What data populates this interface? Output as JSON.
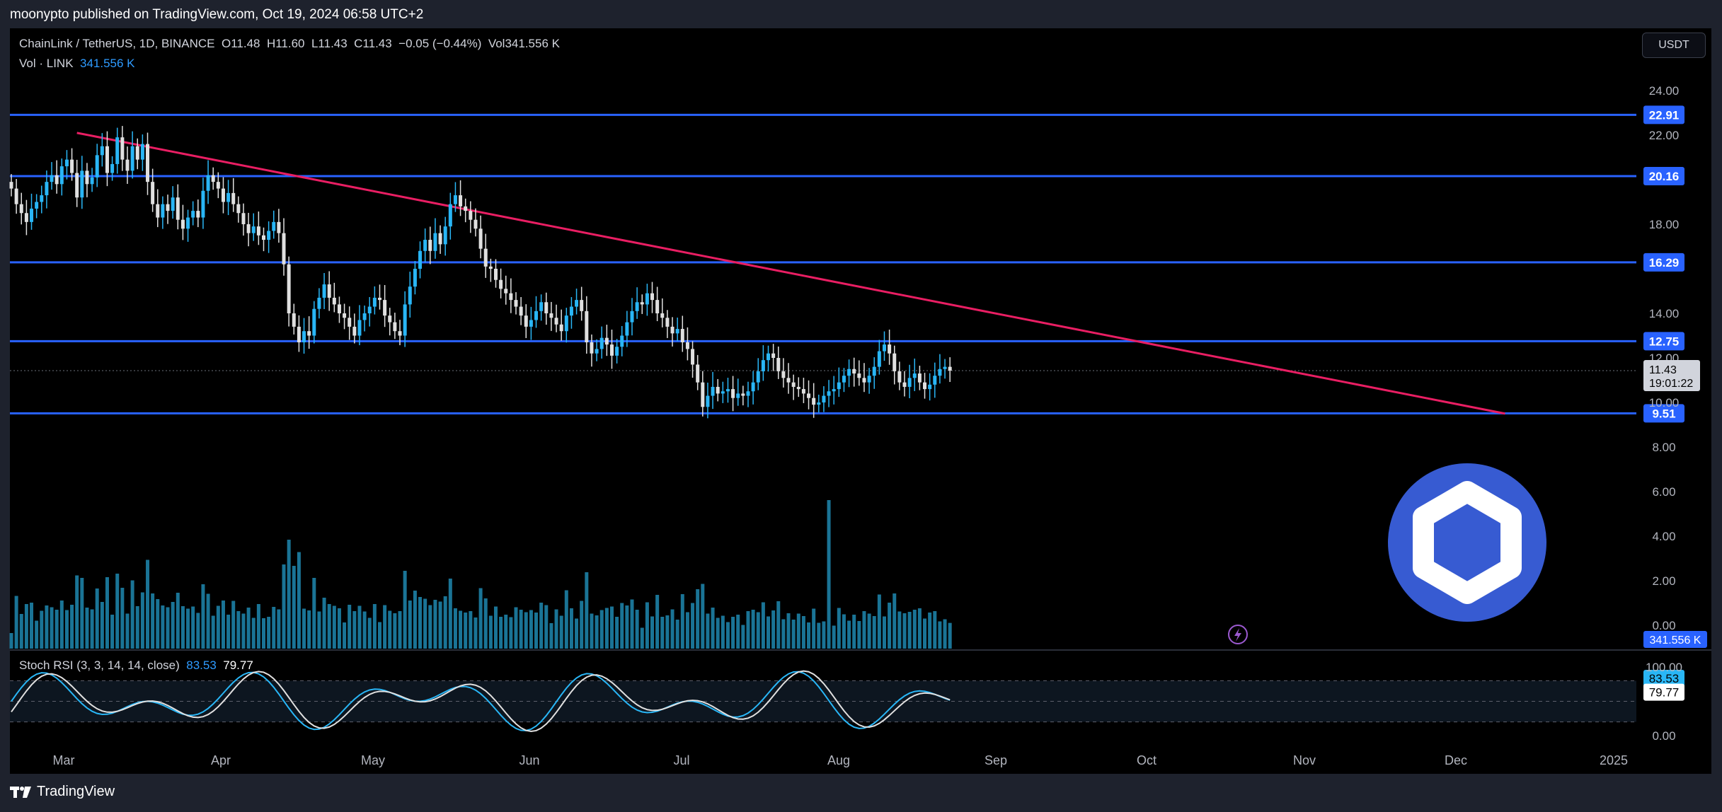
{
  "header": {
    "published": "moonypto published on TradingView.com, Oct 19, 2024 06:58 UTC+2"
  },
  "footer": {
    "brand": "TradingView"
  },
  "currency_button": "USDT",
  "legend": {
    "symbol": "ChainLink / TetherUS, 1D, BINANCE",
    "open": "O11.48",
    "high": "H11.60",
    "low": "L11.43",
    "close": "C11.43",
    "change": "−0.05 (−0.44%)",
    "vol_label": "Vol",
    "vol_value": "341.556 K",
    "vol_line_label": "Vol · LINK",
    "vol_line_value": "341.556 K",
    "stoch_label": "Stoch RSI (3, 3, 14, 14, close)",
    "stoch_k": "83.53",
    "stoch_d": "79.77"
  },
  "chart_data": {
    "type": "candlestick",
    "symbol": "LINK/USDT",
    "interval": "1D",
    "price_axis": {
      "ticks": [
        "24.00",
        "22.00",
        "18.00",
        "14.00",
        "12.00",
        "10.00",
        "8.00",
        "6.00",
        "4.00",
        "2.00",
        "0.00"
      ],
      "range": [
        0,
        25
      ]
    },
    "time_axis": {
      "ticks": [
        "Mar",
        "Apr",
        "May",
        "Jun",
        "Jul",
        "Aug",
        "Sep",
        "Oct",
        "Nov",
        "Dec",
        "2025"
      ]
    },
    "horizontal_levels": [
      22.91,
      20.16,
      16.29,
      12.75,
      9.51
    ],
    "level_labels": [
      "22.91",
      "20.16",
      "16.29",
      "12.75",
      "9.51"
    ],
    "trendline": {
      "from": {
        "date": "2024-03-10",
        "price": 22.1
      },
      "to": {
        "date": "2024-12-18",
        "price": 9.5
      }
    },
    "last_price": "11.43",
    "countdown": "19:01:22",
    "last_volume_label": "341.556 K",
    "close_series": [
      19.6,
      18.9,
      18.5,
      18.1,
      18.7,
      19.0,
      19.3,
      19.9,
      20.2,
      19.8,
      20.6,
      20.9,
      20.3,
      19.2,
      20.4,
      19.8,
      20.1,
      21.1,
      21.5,
      20.3,
      20.7,
      21.9,
      20.9,
      20.4,
      21.5,
      20.9,
      21.6,
      19.9,
      18.9,
      18.3,
      18.9,
      18.6,
      19.2,
      18.2,
      17.8,
      18.3,
      18.6,
      18.3,
      19.5,
      20.2,
      19.9,
      19.6,
      19.0,
      19.4,
      18.9,
      18.5,
      18.0,
      17.6,
      17.9,
      17.5,
      17.3,
      17.7,
      18.1,
      17.6,
      16.2,
      14.0,
      13.4,
      12.7,
      13.2,
      13.0,
      14.2,
      14.7,
      15.3,
      14.7,
      14.4,
      14.0,
      13.8,
      13.4,
      13.0,
      13.7,
      14.0,
      14.3,
      14.7,
      14.6,
      13.9,
      13.6,
      13.2,
      13.0,
      14.4,
      15.2,
      16.0,
      16.8,
      17.3,
      16.8,
      17.6,
      17.1,
      17.9,
      18.9,
      19.3,
      18.8,
      18.6,
      18.2,
      17.8,
      16.9,
      16.1,
      16.0,
      15.5,
      15.1,
      14.9,
      14.6,
      14.3,
      13.9,
      13.4,
      13.7,
      14.1,
      14.5,
      14.0,
      13.8,
      13.5,
      13.2,
      13.9,
      14.3,
      14.6,
      14.1,
      12.7,
      12.2,
      12.4,
      12.9,
      12.6,
      12.1,
      12.5,
      13.0,
      13.6,
      14.1,
      14.5,
      14.4,
      14.9,
      14.6,
      14.0,
      13.8,
      13.4,
      13.1,
      13.3,
      12.7,
      12.4,
      11.7,
      10.9,
      9.8,
      10.3,
      10.7,
      10.4,
      10.5,
      10.6,
      10.2,
      10.4,
      10.3,
      10.5,
      10.9,
      11.4,
      11.9,
      12.2,
      12.0,
      11.4,
      11.1,
      10.9,
      10.7,
      10.6,
      10.4,
      10.2,
      9.9,
      10.0,
      10.3,
      10.5,
      10.6,
      10.9,
      11.2,
      11.5,
      11.3,
      11.1,
      10.9,
      11.2,
      11.6,
      12.3,
      12.6,
      12.2,
      11.4,
      10.9,
      10.7,
      11.1,
      11.3,
      10.9,
      10.6,
      10.8,
      11.2,
      11.5,
      11.6,
      11.43
    ],
    "volume_axis_scale": "relative",
    "stoch_rsi": {
      "k": 83.53,
      "d": 79.77,
      "ticks": [
        "100.00",
        "0.00"
      ],
      "upper_band": 80,
      "lower_band": 20
    }
  }
}
